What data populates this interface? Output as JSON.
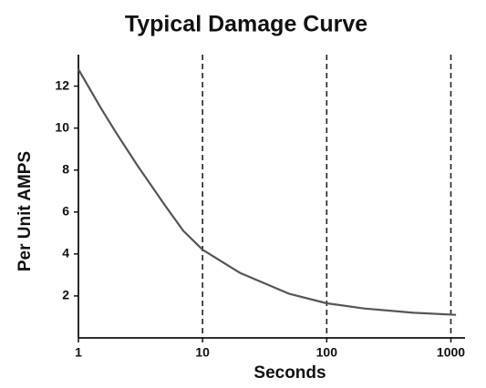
{
  "chart_data": {
    "type": "line",
    "title": "Typical Damage Curve",
    "x_label": "Seconds",
    "y_label": "Per Unit AMPS",
    "x": [
      1,
      1.5,
      2,
      3,
      5,
      7,
      10,
      20,
      50,
      100,
      200,
      500,
      1100
    ],
    "series": [
      {
        "name": "Damage curve",
        "color": "#555555",
        "values": [
          12.8,
          11,
          9.8,
          8.2,
          6.3,
          5.1,
          4.2,
          3.1,
          2.1,
          1.65,
          1.4,
          1.2,
          1.1
        ]
      }
    ],
    "x_log": true,
    "xlim": [
      1,
      1300
    ],
    "xticks": [
      1,
      10,
      100,
      1000
    ],
    "ylim": [
      0,
      13.5
    ],
    "yticks": [
      2,
      4,
      6,
      8,
      10,
      12
    ],
    "grid": "x-dashed"
  }
}
